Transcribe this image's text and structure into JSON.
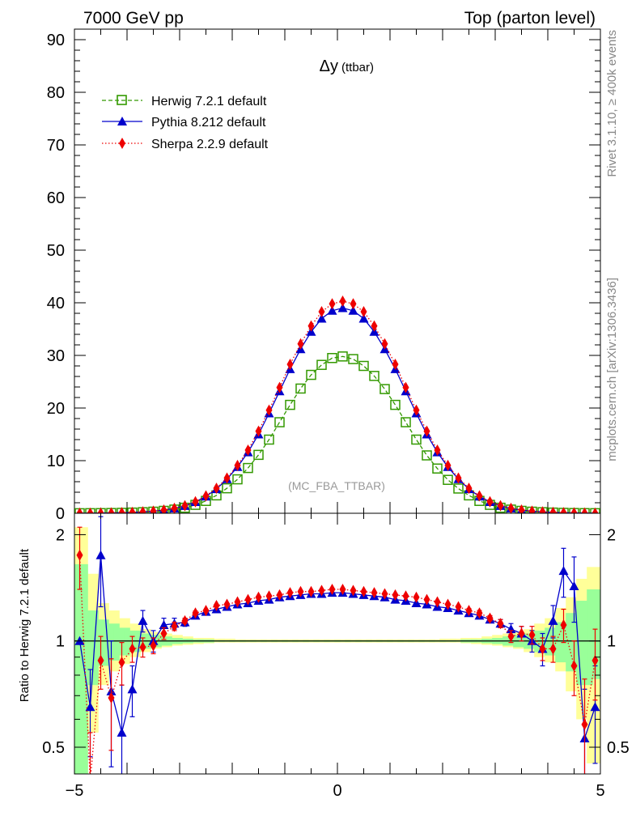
{
  "header": {
    "left": "7000 GeV pp",
    "right": "Top (parton level)"
  },
  "side_labels": {
    "rivet": "Rivet 3.1.10, ≥ 400k events",
    "mcplots": "mcplots.cern.ch [arXiv:1306.3436]"
  },
  "chart_data": [
    {
      "type": "line",
      "title": "Δy (ttbar)",
      "title_main": "Δy",
      "title_sub": "(ttbar)",
      "annotation": "(MC_FBA_TTBAR)",
      "xlim": [
        -5,
        5
      ],
      "ylim": [
        0,
        92
      ],
      "yticks": [
        0,
        10,
        20,
        30,
        40,
        50,
        60,
        70,
        80,
        90
      ],
      "grid": false,
      "legend_position": "top-left",
      "x": [
        -4.9,
        -4.7,
        -4.5,
        -4.3,
        -4.1,
        -3.9,
        -3.7,
        -3.5,
        -3.3,
        -3.1,
        -2.9,
        -2.7,
        -2.5,
        -2.3,
        -2.1,
        -1.9,
        -1.7,
        -1.5,
        -1.3,
        -1.1,
        -0.9,
        -0.7,
        -0.5,
        -0.3,
        -0.1,
        0.1,
        0.3,
        0.5,
        0.7,
        0.9,
        1.1,
        1.3,
        1.5,
        1.7,
        1.9,
        2.1,
        2.3,
        2.5,
        2.7,
        2.9,
        3.1,
        3.3,
        3.5,
        3.7,
        3.9,
        4.1,
        4.3,
        4.5,
        4.7,
        4.9
      ],
      "series": [
        {
          "name": "Herwig 7.2.1 default",
          "color": "#339900",
          "marker": "open-square",
          "line": "dashed",
          "values": [
            0.01,
            0.02,
            0.03,
            0.05,
            0.08,
            0.13,
            0.2,
            0.3,
            0.46,
            0.7,
            1.05,
            1.6,
            2.35,
            3.4,
            4.75,
            6.45,
            8.6,
            11.1,
            14.0,
            17.3,
            20.6,
            23.7,
            26.3,
            28.2,
            29.5,
            29.8,
            29.3,
            28.0,
            26.1,
            23.6,
            20.6,
            17.3,
            14.0,
            11.0,
            8.5,
            6.35,
            4.7,
            3.4,
            2.35,
            1.6,
            1.05,
            0.7,
            0.46,
            0.3,
            0.2,
            0.13,
            0.08,
            0.05,
            0.03,
            0.02
          ]
        },
        {
          "name": "Pythia 8.212 default",
          "color": "#0000cc",
          "marker": "filled-triangle",
          "line": "solid",
          "values": [
            0.01,
            0.02,
            0.04,
            0.07,
            0.11,
            0.17,
            0.26,
            0.4,
            0.6,
            0.92,
            1.4,
            2.15,
            3.2,
            4.6,
            6.5,
            8.8,
            11.6,
            15.0,
            19.0,
            23.2,
            27.4,
            31.2,
            34.5,
            37.0,
            38.5,
            39.0,
            38.5,
            37.0,
            34.5,
            31.2,
            27.4,
            23.2,
            19.0,
            15.0,
            11.6,
            8.8,
            6.5,
            4.6,
            3.2,
            2.15,
            1.4,
            0.92,
            0.6,
            0.4,
            0.26,
            0.17,
            0.11,
            0.07,
            0.04,
            0.02
          ]
        },
        {
          "name": "Sherpa 2.2.9 default",
          "color": "#ee0000",
          "marker": "filled-diamond",
          "line": "dotted",
          "values": [
            0.01,
            0.02,
            0.04,
            0.07,
            0.11,
            0.17,
            0.26,
            0.4,
            0.61,
            0.95,
            1.45,
            2.2,
            3.3,
            4.75,
            6.7,
            9.1,
            12.0,
            15.6,
            19.6,
            23.9,
            28.3,
            32.2,
            35.6,
            38.3,
            39.8,
            40.3,
            39.8,
            38.3,
            35.6,
            32.2,
            28.3,
            23.9,
            19.6,
            15.6,
            12.0,
            9.1,
            6.7,
            4.75,
            3.3,
            2.2,
            1.45,
            0.95,
            0.61,
            0.4,
            0.26,
            0.17,
            0.11,
            0.07,
            0.04,
            0.02
          ]
        }
      ]
    },
    {
      "type": "line",
      "ylabel": "Ratio to Herwig 7.2.1 default",
      "y_scale": "log",
      "xlim": [
        -5,
        5
      ],
      "ylim": [
        0.42,
        2.3
      ],
      "yticks": [
        0.5,
        1,
        2
      ],
      "xticks": [
        -5,
        0,
        5
      ],
      "reference_line": 1,
      "x": [
        -4.9,
        -4.7,
        -4.5,
        -4.3,
        -4.1,
        -3.9,
        -3.7,
        -3.5,
        -3.3,
        -3.1,
        -2.9,
        -2.7,
        -2.5,
        -2.3,
        -2.1,
        -1.9,
        -1.7,
        -1.5,
        -1.3,
        -1.1,
        -0.9,
        -0.7,
        -0.5,
        -0.3,
        -0.1,
        0.1,
        0.3,
        0.5,
        0.7,
        0.9,
        1.1,
        1.3,
        1.5,
        1.7,
        1.9,
        2.1,
        2.3,
        2.5,
        2.7,
        2.9,
        3.1,
        3.3,
        3.5,
        3.7,
        3.9,
        4.1,
        4.3,
        4.5,
        4.7,
        4.9
      ],
      "herwig_uncertainty_yellow": [
        [
          0.38,
          2.1
        ],
        [
          0.55,
          1.55
        ],
        [
          0.75,
          1.28
        ],
        [
          0.82,
          1.22
        ],
        [
          0.86,
          1.16
        ],
        [
          0.9,
          1.12
        ],
        [
          0.93,
          1.08
        ],
        [
          0.95,
          1.06
        ],
        [
          0.96,
          1.05
        ],
        [
          0.97,
          1.04
        ],
        [
          0.975,
          1.03
        ],
        [
          0.98,
          1.02
        ],
        [
          0.985,
          1.02
        ],
        [
          0.99,
          1.015
        ],
        [
          0.99,
          1.015
        ],
        [
          0.99,
          1.01
        ],
        [
          0.99,
          1.01
        ],
        [
          0.99,
          1.01
        ],
        [
          0.99,
          1.01
        ],
        [
          0.99,
          1.01
        ],
        [
          0.99,
          1.01
        ],
        [
          0.99,
          1.01
        ],
        [
          0.99,
          1.01
        ],
        [
          0.99,
          1.01
        ],
        [
          0.99,
          1.01
        ],
        [
          0.99,
          1.01
        ],
        [
          0.99,
          1.01
        ],
        [
          0.99,
          1.01
        ],
        [
          0.99,
          1.01
        ],
        [
          0.99,
          1.01
        ],
        [
          0.99,
          1.01
        ],
        [
          0.99,
          1.01
        ],
        [
          0.99,
          1.01
        ],
        [
          0.99,
          1.01
        ],
        [
          0.99,
          1.01
        ],
        [
          0.99,
          1.015
        ],
        [
          0.99,
          1.015
        ],
        [
          0.985,
          1.02
        ],
        [
          0.98,
          1.02
        ],
        [
          0.975,
          1.03
        ],
        [
          0.97,
          1.04
        ],
        [
          0.96,
          1.05
        ],
        [
          0.95,
          1.06
        ],
        [
          0.93,
          1.08
        ],
        [
          0.9,
          1.12
        ],
        [
          0.87,
          1.16
        ],
        [
          0.82,
          1.24
        ],
        [
          0.72,
          1.33
        ],
        [
          0.6,
          1.5
        ],
        [
          0.45,
          1.62
        ]
      ],
      "herwig_uncertainty_green": [
        [
          0.4,
          1.65
        ],
        [
          0.75,
          1.22
        ],
        [
          0.85,
          1.15
        ],
        [
          0.88,
          1.12
        ],
        [
          0.91,
          1.09
        ],
        [
          0.93,
          1.07
        ],
        [
          0.95,
          1.05
        ],
        [
          0.96,
          1.04
        ],
        [
          0.97,
          1.03
        ],
        [
          0.98,
          1.02
        ],
        [
          0.985,
          1.015
        ],
        [
          0.99,
          1.01
        ],
        [
          0.99,
          1.01
        ],
        [
          0.995,
          1.005
        ],
        [
          0.995,
          1.005
        ],
        [
          0.995,
          1.005
        ],
        [
          0.995,
          1.005
        ],
        [
          0.995,
          1.005
        ],
        [
          0.995,
          1.005
        ],
        [
          0.995,
          1.005
        ],
        [
          0.995,
          1.005
        ],
        [
          0.995,
          1.005
        ],
        [
          0.995,
          1.005
        ],
        [
          0.995,
          1.005
        ],
        [
          0.995,
          1.005
        ],
        [
          0.995,
          1.005
        ],
        [
          0.995,
          1.005
        ],
        [
          0.995,
          1.005
        ],
        [
          0.995,
          1.005
        ],
        [
          0.995,
          1.005
        ],
        [
          0.995,
          1.005
        ],
        [
          0.995,
          1.005
        ],
        [
          0.995,
          1.005
        ],
        [
          0.995,
          1.005
        ],
        [
          0.995,
          1.005
        ],
        [
          0.995,
          1.005
        ],
        [
          0.995,
          1.005
        ],
        [
          0.99,
          1.01
        ],
        [
          0.99,
          1.01
        ],
        [
          0.985,
          1.015
        ],
        [
          0.98,
          1.02
        ],
        [
          0.97,
          1.03
        ],
        [
          0.96,
          1.04
        ],
        [
          0.95,
          1.05
        ],
        [
          0.93,
          1.07
        ],
        [
          0.91,
          1.09
        ],
        [
          0.87,
          1.13
        ],
        [
          0.82,
          1.2
        ],
        [
          0.75,
          1.3
        ],
        [
          0.78,
          1.4
        ]
      ],
      "series": [
        {
          "name": "Pythia 8.212 default",
          "color": "#0000cc",
          "marker": "filled-triangle",
          "values": [
            1.0,
            0.65,
            1.75,
            0.72,
            0.55,
            0.73,
            1.14,
            1.0,
            1.11,
            1.12,
            1.13,
            1.18,
            1.21,
            1.23,
            1.25,
            1.27,
            1.28,
            1.3,
            1.31,
            1.33,
            1.34,
            1.35,
            1.36,
            1.36,
            1.37,
            1.37,
            1.36,
            1.35,
            1.34,
            1.33,
            1.31,
            1.3,
            1.28,
            1.27,
            1.25,
            1.24,
            1.22,
            1.2,
            1.18,
            1.15,
            1.12,
            1.08,
            1.05,
            1.0,
            0.95,
            1.14,
            1.58,
            1.43,
            0.53,
            0.65
          ],
          "errors": [
            0.0,
            0.18,
            0.5,
            0.28,
            0.2,
            0.12,
            0.08,
            0.07,
            0.05,
            0.04,
            0.03,
            0.02,
            0.015,
            0.01,
            0.01,
            0.01,
            0.01,
            0.01,
            0.01,
            0.01,
            0.01,
            0.01,
            0.01,
            0.01,
            0.01,
            0.01,
            0.01,
            0.01,
            0.01,
            0.01,
            0.01,
            0.01,
            0.01,
            0.01,
            0.01,
            0.01,
            0.01,
            0.015,
            0.02,
            0.02,
            0.03,
            0.04,
            0.05,
            0.07,
            0.1,
            0.12,
            0.25,
            0.3,
            0.2,
            0.2
          ]
        },
        {
          "name": "Sherpa 2.2.9 default",
          "color": "#ee0000",
          "marker": "filled-diamond",
          "values": [
            1.75,
            0.4,
            0.88,
            0.69,
            0.87,
            0.95,
            0.96,
            0.97,
            1.05,
            1.1,
            1.14,
            1.2,
            1.22,
            1.26,
            1.27,
            1.29,
            1.31,
            1.33,
            1.34,
            1.35,
            1.37,
            1.38,
            1.38,
            1.39,
            1.4,
            1.4,
            1.39,
            1.38,
            1.37,
            1.36,
            1.35,
            1.34,
            1.33,
            1.31,
            1.29,
            1.27,
            1.25,
            1.22,
            1.2,
            1.16,
            1.12,
            1.03,
            1.05,
            1.04,
            0.95,
            0.95,
            1.11,
            0.85,
            0.58,
            0.88
          ],
          "errors": [
            0.35,
            0.15,
            0.15,
            0.2,
            0.12,
            0.08,
            0.06,
            0.05,
            0.04,
            0.03,
            0.02,
            0.015,
            0.01,
            0.01,
            0.01,
            0.01,
            0.01,
            0.01,
            0.01,
            0.01,
            0.01,
            0.01,
            0.01,
            0.01,
            0.01,
            0.01,
            0.01,
            0.01,
            0.01,
            0.01,
            0.01,
            0.01,
            0.01,
            0.01,
            0.01,
            0.01,
            0.01,
            0.015,
            0.02,
            0.02,
            0.03,
            0.04,
            0.05,
            0.06,
            0.07,
            0.08,
            0.12,
            0.15,
            0.2,
            0.2
          ]
        }
      ]
    }
  ]
}
